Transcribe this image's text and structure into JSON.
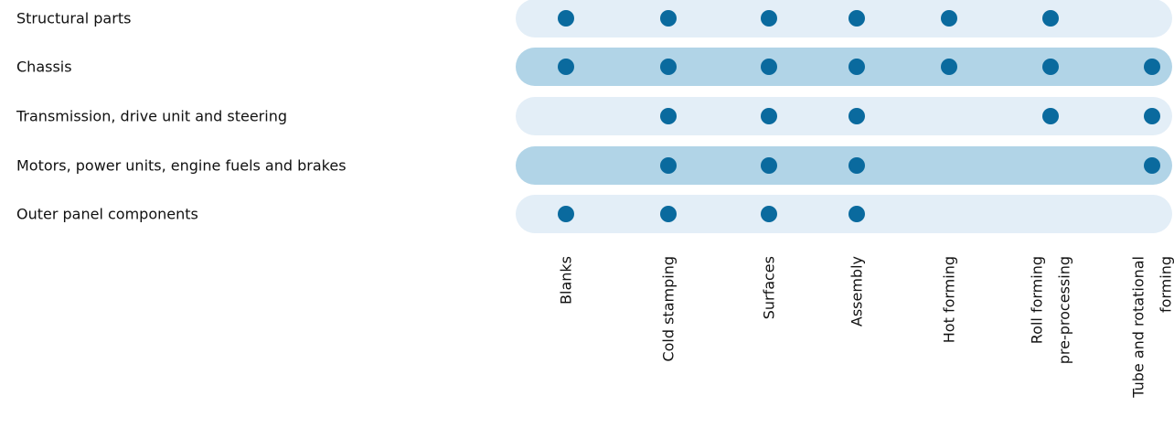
{
  "chart_data": {
    "type": "table",
    "rows": [
      "Structural parts",
      "Chassis",
      "Transmission, drive unit and steering",
      "Motors, power units, engine fuels and brakes",
      "Outer panel components"
    ],
    "columns": [
      [
        "Blanks"
      ],
      [
        "Cold stamping"
      ],
      [
        "Surfaces"
      ],
      [
        "Assembly"
      ],
      [
        "Hot forming"
      ],
      [
        "Roll forming",
        "pre-processing"
      ],
      [
        "Tube and rotational",
        "forming"
      ]
    ],
    "matrix": [
      [
        1,
        1,
        1,
        1,
        1,
        1,
        0
      ],
      [
        1,
        1,
        1,
        1,
        1,
        1,
        1
      ],
      [
        0,
        1,
        1,
        1,
        0,
        1,
        1
      ],
      [
        0,
        1,
        1,
        1,
        0,
        0,
        1
      ],
      [
        1,
        1,
        1,
        1,
        0,
        0,
        0
      ]
    ]
  },
  "colors": {
    "band_light": "#e3eef7",
    "band_dark": "#b1d4e7",
    "dot": "#0a6a9e",
    "text": "#111111"
  }
}
